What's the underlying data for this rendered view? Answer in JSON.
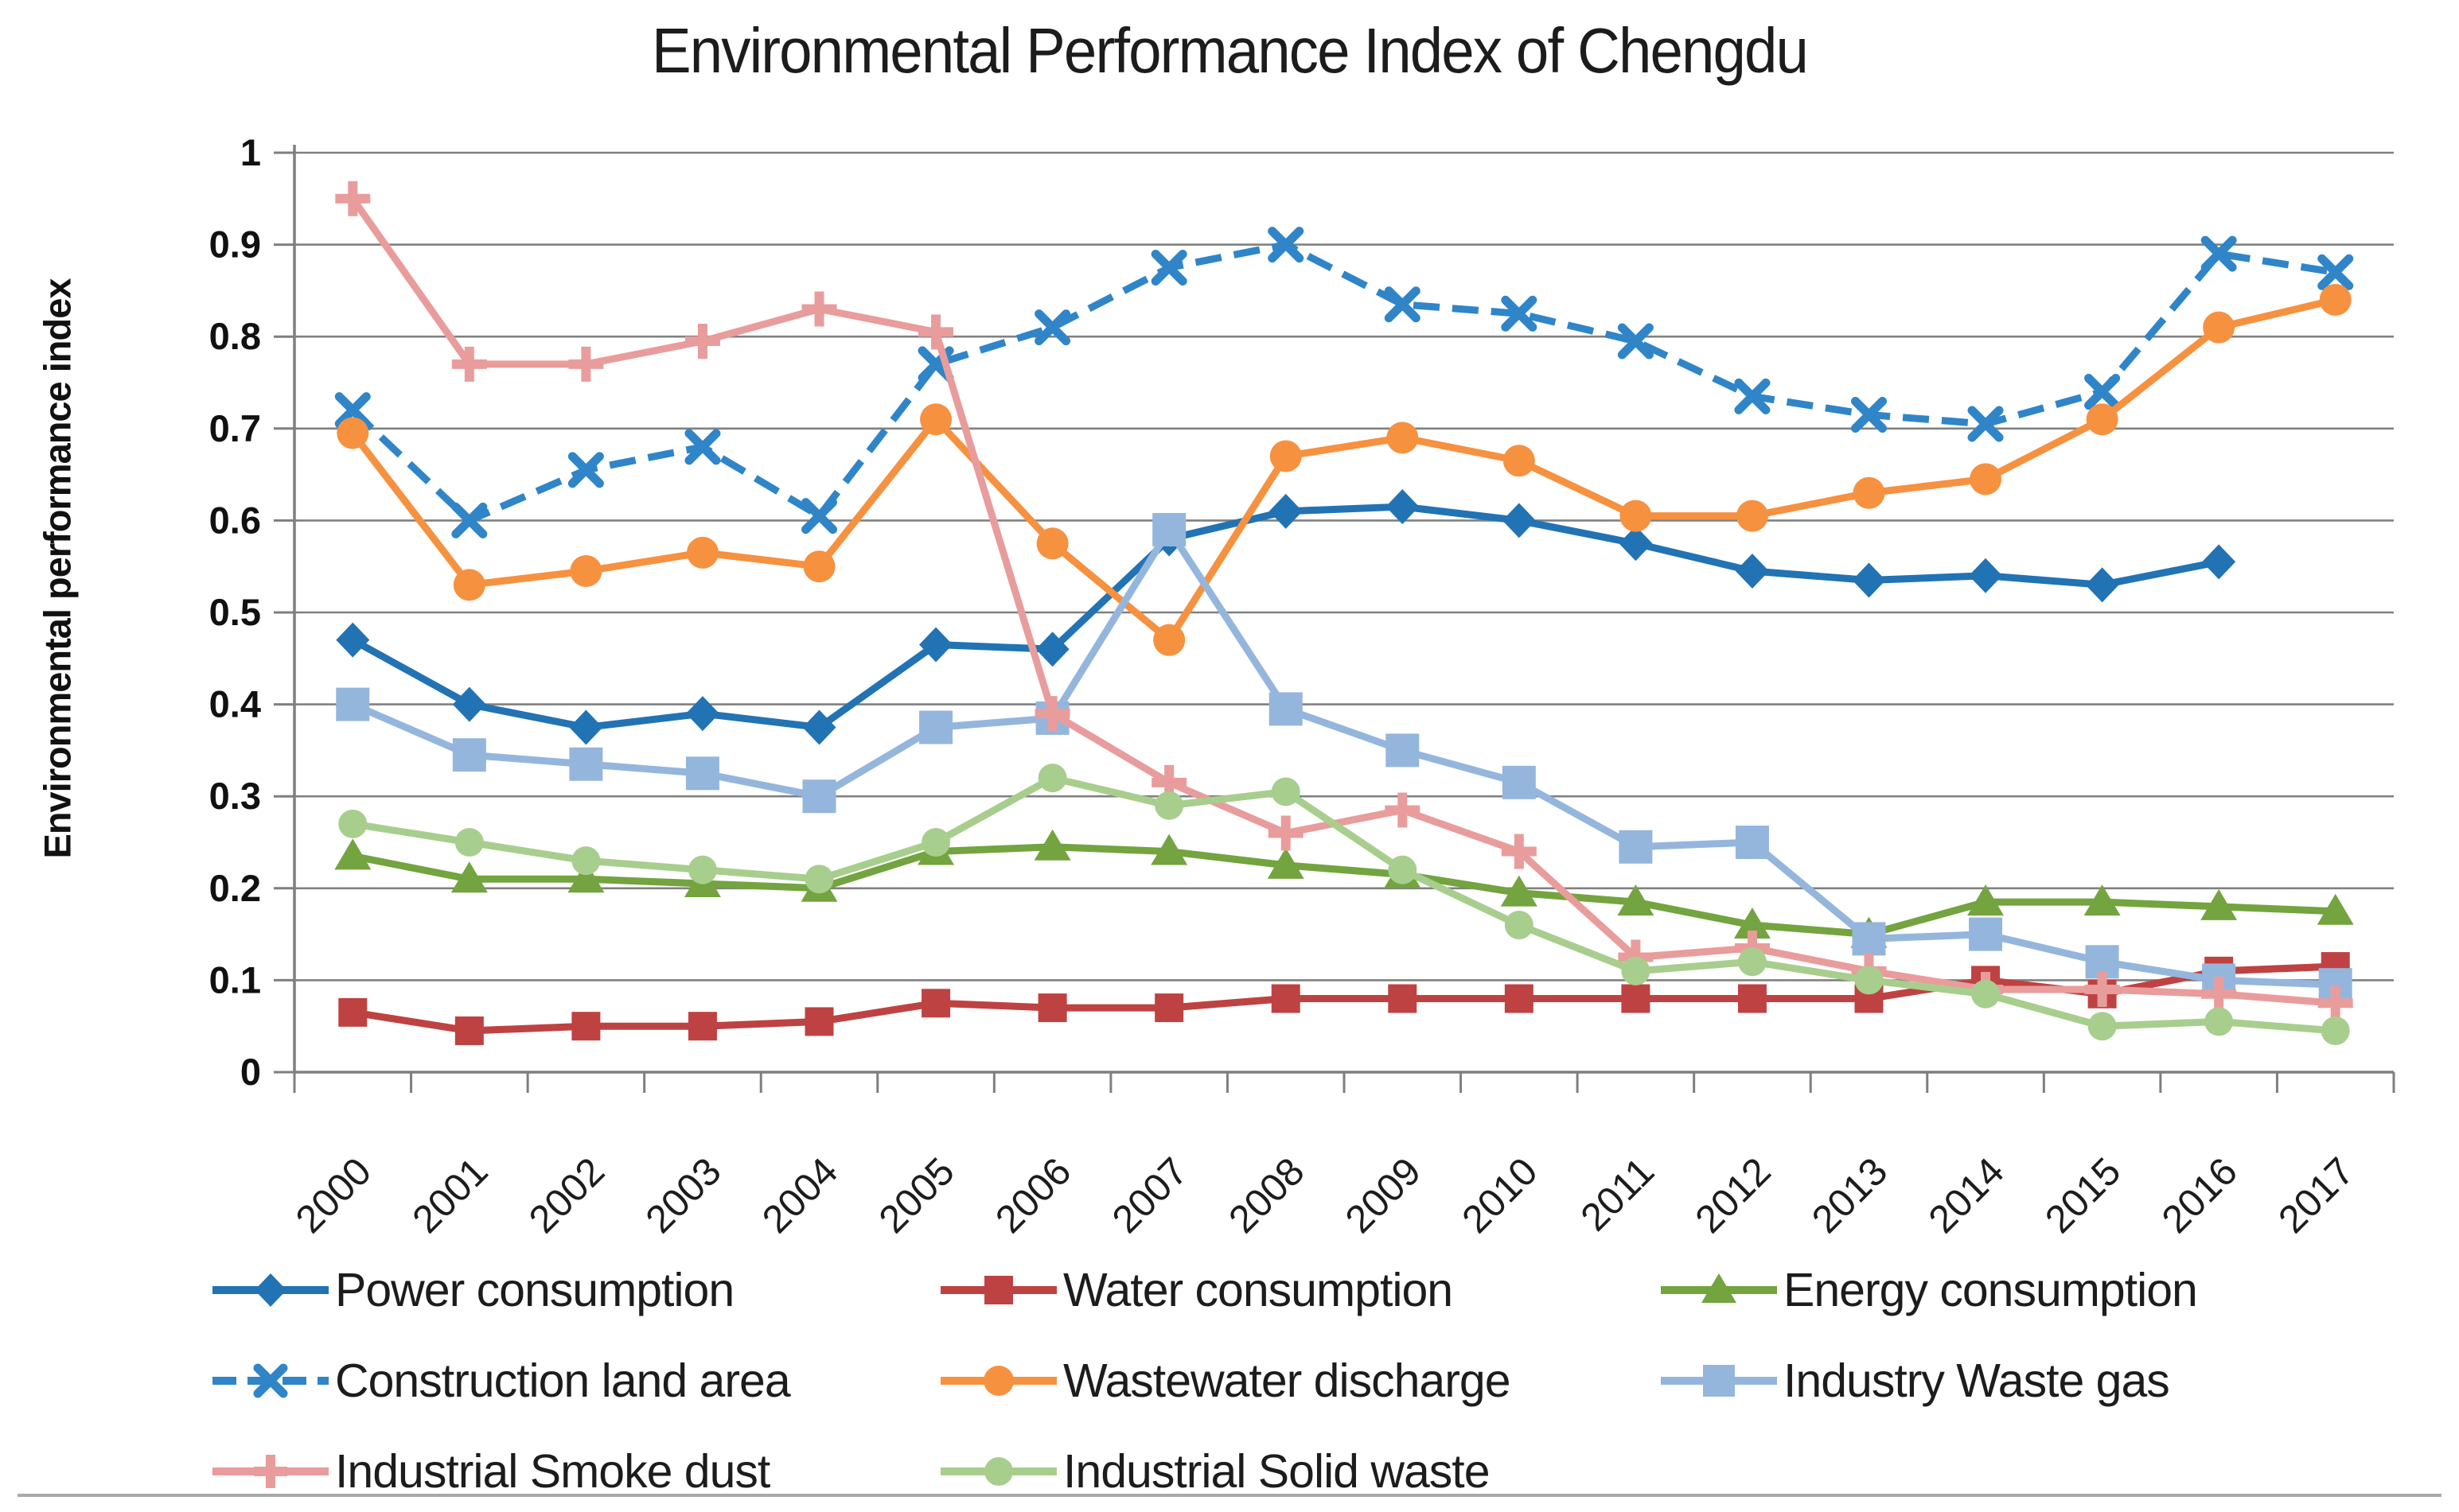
{
  "title": "Environmental Performance Index of Chengdu",
  "chart_data": {
    "type": "line",
    "title": "Environmental Performance Index of Chengdu",
    "xlabel": "",
    "ylabel": "Environmental performance index",
    "ylim": [
      0,
      1
    ],
    "ytick_step": 0.1,
    "ytick_labels": [
      "0",
      "0.1",
      "0.2",
      "0.3",
      "0.4",
      "0.5",
      "0.6",
      "0.7",
      "0.8",
      "0.9",
      "1"
    ],
    "grid": true,
    "legend_position": "bottom",
    "gridline_color": "#808080",
    "axis_color": "#7f7f7f",
    "categories": [
      "2000",
      "2001",
      "2002",
      "2003",
      "2004",
      "2005",
      "2006",
      "2007",
      "2008",
      "2009",
      "2010",
      "2011",
      "2012",
      "2013",
      "2014",
      "2015",
      "2016",
      "2017"
    ],
    "series": [
      {
        "name": "Power consumption",
        "marker": "diamond",
        "line": "solid",
        "color": "#2273B4",
        "values": [
          0.47,
          0.4,
          0.375,
          0.39,
          0.375,
          0.465,
          0.46,
          0.58,
          0.61,
          0.615,
          0.6,
          0.575,
          0.545,
          0.535,
          0.54,
          0.53,
          0.555,
          null
        ]
      },
      {
        "name": "Water consumption",
        "marker": "square",
        "line": "solid",
        "color": "#BF4242",
        "values": [
          0.065,
          0.045,
          0.05,
          0.05,
          0.055,
          0.075,
          0.07,
          0.07,
          0.08,
          0.08,
          0.08,
          0.08,
          0.08,
          0.08,
          0.1,
          0.085,
          0.11,
          0.115
        ]
      },
      {
        "name": "Energy consumption",
        "marker": "triangle",
        "line": "solid",
        "color": "#73A43F",
        "values": [
          0.235,
          0.21,
          0.21,
          0.205,
          0.2,
          0.24,
          0.245,
          0.24,
          0.225,
          0.215,
          0.195,
          0.185,
          0.16,
          0.15,
          0.185,
          0.185,
          0.18,
          0.175
        ]
      },
      {
        "name": "Construction land area",
        "marker": "x",
        "line": "dash",
        "color": "#2F85C8",
        "values": [
          0.72,
          0.6,
          0.655,
          0.68,
          0.605,
          0.77,
          0.81,
          0.875,
          0.9,
          0.835,
          0.825,
          0.795,
          0.735,
          0.715,
          0.705,
          0.74,
          0.89,
          0.87
        ]
      },
      {
        "name": "Wastewater discharge",
        "marker": "circle",
        "line": "solid",
        "color": "#F69140",
        "values": [
          0.695,
          0.53,
          0.545,
          0.565,
          0.55,
          0.71,
          0.575,
          0.47,
          0.67,
          0.69,
          0.665,
          0.605,
          0.605,
          0.63,
          0.645,
          0.71,
          0.81,
          0.84
        ]
      },
      {
        "name": "Industry Waste gas",
        "marker": "square-large",
        "line": "solid",
        "color": "#95B6DC",
        "values": [
          0.4,
          0.345,
          0.335,
          0.325,
          0.3,
          0.375,
          0.385,
          0.59,
          0.395,
          0.35,
          0.315,
          0.245,
          0.25,
          0.145,
          0.15,
          0.12,
          0.1,
          0.095
        ]
      },
      {
        "name": "Industrial Smoke dust",
        "marker": "plus",
        "line": "solid",
        "color": "#E99C9C",
        "values": [
          0.95,
          0.77,
          0.77,
          0.795,
          0.83,
          0.805,
          0.39,
          0.315,
          0.26,
          0.285,
          0.24,
          0.125,
          0.135,
          0.11,
          0.09,
          0.09,
          0.085,
          0.075
        ]
      },
      {
        "name": "Industrial Solid waste",
        "marker": "circle-small",
        "line": "solid",
        "color": "#A8CE8E",
        "values": [
          0.27,
          0.25,
          0.23,
          0.22,
          0.21,
          0.25,
          0.32,
          0.29,
          0.305,
          0.22,
          0.16,
          0.11,
          0.12,
          0.1,
          0.085,
          0.05,
          0.055,
          0.045
        ]
      }
    ]
  }
}
